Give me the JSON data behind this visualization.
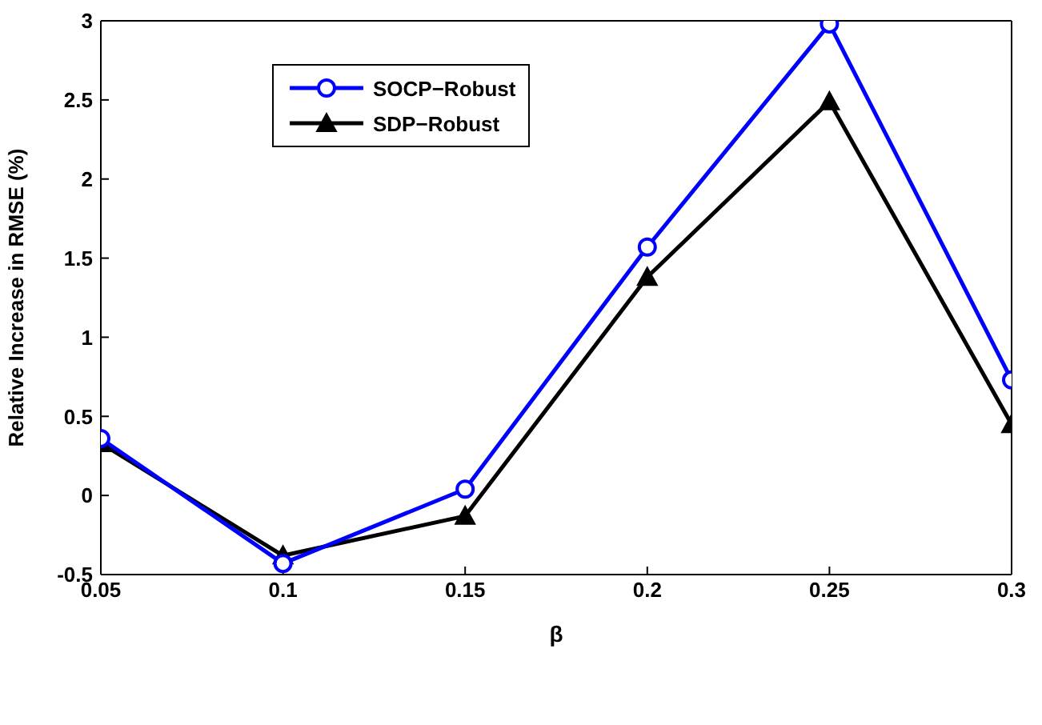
{
  "chart_data": {
    "type": "line",
    "xlabel": "β",
    "ylabel": "Relative Increase in RMSE (%)",
    "x": [
      0.05,
      0.1,
      0.15,
      0.2,
      0.25,
      0.3
    ],
    "series": [
      {
        "name": "SOCP−Robust",
        "color": "#0000ff",
        "marker": "circle",
        "values": [
          0.36,
          -0.43,
          0.04,
          1.57,
          2.98,
          0.73
        ]
      },
      {
        "name": "SDP−Robust",
        "color": "#000000",
        "marker": "triangle",
        "values": [
          0.33,
          -0.38,
          -0.13,
          1.38,
          2.49,
          0.45
        ]
      }
    ],
    "xlim": [
      0.05,
      0.3
    ],
    "xticks": [
      0.05,
      0.1,
      0.15,
      0.2,
      0.25,
      0.3
    ],
    "ylim": [
      -0.5,
      3
    ],
    "yticks": [
      -0.5,
      0,
      0.5,
      1,
      1.5,
      2,
      2.5,
      3
    ],
    "grid": false,
    "legend": "top left",
    "line_style": "solid"
  }
}
